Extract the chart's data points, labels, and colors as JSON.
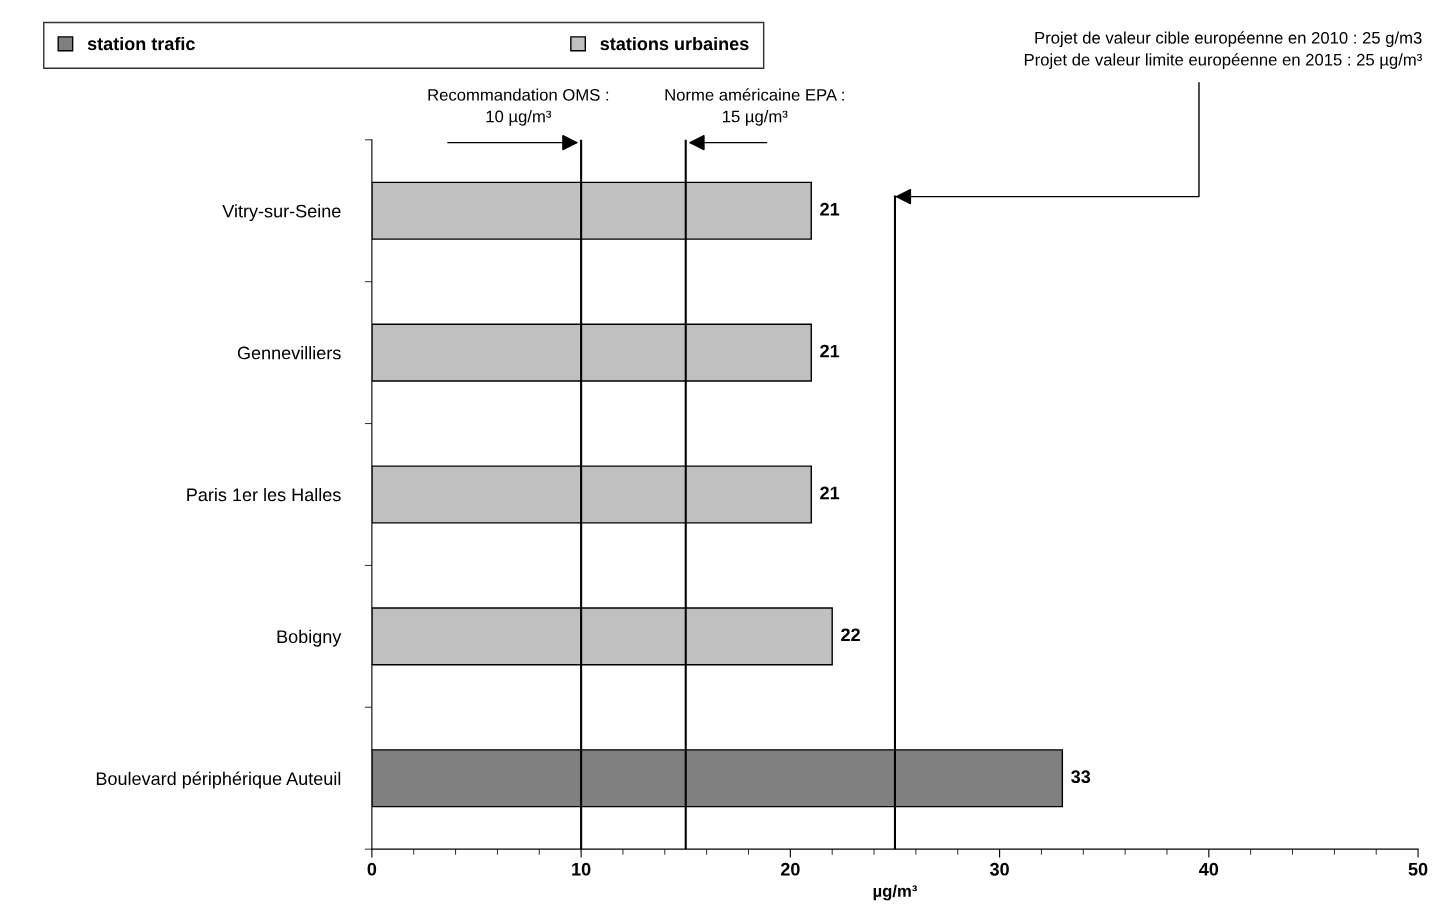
{
  "chart_data": {
    "type": "bar",
    "orientation": "horizontal",
    "categories": [
      "Vitry-sur-Seine",
      "Gennevilliers",
      "Paris 1er les Halles",
      "Bobigny",
      "Boulevard périphérique Auteuil"
    ],
    "series": [
      {
        "name": "station trafic",
        "color": "#808080",
        "values": [
          null,
          null,
          null,
          null,
          33
        ]
      },
      {
        "name": "stations urbaines",
        "color": "#c0c0c0",
        "values": [
          21,
          21,
          21,
          22,
          null
        ]
      }
    ],
    "data_labels": true,
    "xlabel": "µg/m³",
    "xlim": [
      0,
      50
    ],
    "xticks": [
      0,
      10,
      20,
      30,
      40,
      50
    ],
    "grid": false,
    "legend": "top left",
    "ref_lines": [
      {
        "axis": "x",
        "value": 10,
        "label": "Recommandation OMS :\n10 µg/m³",
        "color": "#000000"
      },
      {
        "axis": "x",
        "value": 15,
        "label": "Norme américaine EPA :\n15 µg/m³",
        "color": "#000000"
      },
      {
        "axis": "x",
        "value": 25,
        "label": "Projet de valeur cible européenne en 2010 : 25 g/m3\nProjet de valeur limite européenne en 2015 : 25 µg/m³",
        "color": "#000000"
      }
    ]
  }
}
